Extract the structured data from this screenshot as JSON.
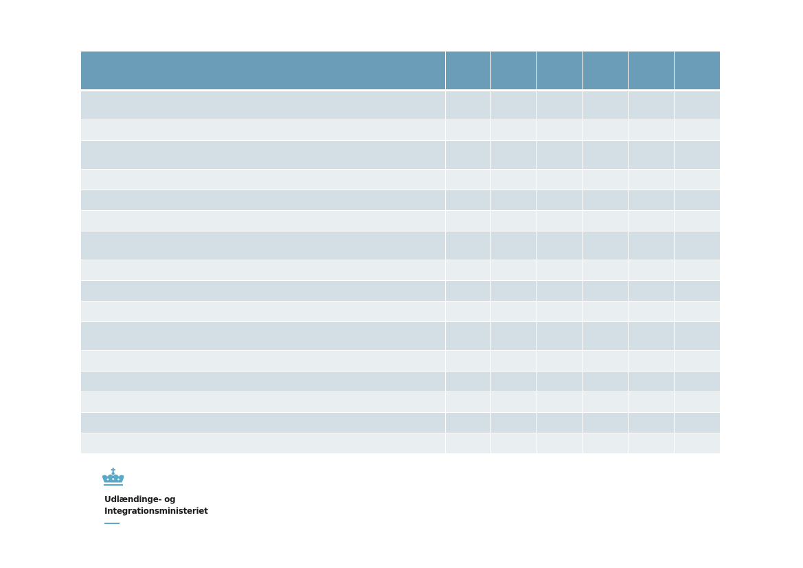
{
  "table": {
    "header": [
      "",
      "",
      "",
      "",
      "",
      "",
      ""
    ],
    "rows": [
      {
        "shade": "dark",
        "size": "tall",
        "cells": [
          "",
          "",
          "",
          "",
          "",
          "",
          ""
        ]
      },
      {
        "shade": "light",
        "size": "short",
        "cells": [
          "",
          "",
          "",
          "",
          "",
          "",
          ""
        ]
      },
      {
        "shade": "dark",
        "size": "tall",
        "cells": [
          "",
          "",
          "",
          "",
          "",
          "",
          ""
        ]
      },
      {
        "shade": "light",
        "size": "short",
        "cells": [
          "",
          "",
          "",
          "",
          "",
          "",
          ""
        ]
      },
      {
        "shade": "dark",
        "size": "short",
        "cells": [
          "",
          "",
          "",
          "",
          "",
          "",
          ""
        ]
      },
      {
        "shade": "light",
        "size": "short",
        "cells": [
          "",
          "",
          "",
          "",
          "",
          "",
          ""
        ]
      },
      {
        "shade": "dark",
        "size": "tall",
        "cells": [
          "",
          "",
          "",
          "",
          "",
          "",
          ""
        ]
      },
      {
        "shade": "light",
        "size": "short",
        "cells": [
          "",
          "",
          "",
          "",
          "",
          "",
          ""
        ]
      },
      {
        "shade": "dark",
        "size": "short",
        "cells": [
          "",
          "",
          "",
          "",
          "",
          "",
          ""
        ]
      },
      {
        "shade": "light",
        "size": "short",
        "cells": [
          "",
          "",
          "",
          "",
          "",
          "",
          ""
        ]
      },
      {
        "shade": "dark",
        "size": "tall",
        "cells": [
          "",
          "",
          "",
          "",
          "",
          "",
          ""
        ]
      },
      {
        "shade": "light",
        "size": "short",
        "cells": [
          "",
          "",
          "",
          "",
          "",
          "",
          ""
        ]
      },
      {
        "shade": "dark",
        "size": "short",
        "cells": [
          "",
          "",
          "",
          "",
          "",
          "",
          ""
        ]
      },
      {
        "shade": "light",
        "size": "short",
        "cells": [
          "",
          "",
          "",
          "",
          "",
          "",
          ""
        ]
      },
      {
        "shade": "dark",
        "size": "short",
        "cells": [
          "",
          "",
          "",
          "",
          "",
          "",
          ""
        ]
      },
      {
        "shade": "light",
        "size": "short",
        "cells": [
          "",
          "",
          "",
          "",
          "",
          "",
          ""
        ]
      }
    ]
  },
  "colors": {
    "header": "#6c9db8",
    "row_dark": "#d4dfe5",
    "row_light": "#e9eff1",
    "logo_accent": "#5aa9c9"
  },
  "logo": {
    "icon": "crown-icon",
    "line1": "Udlændinge- og",
    "line2": "Integrationsministeriet"
  }
}
